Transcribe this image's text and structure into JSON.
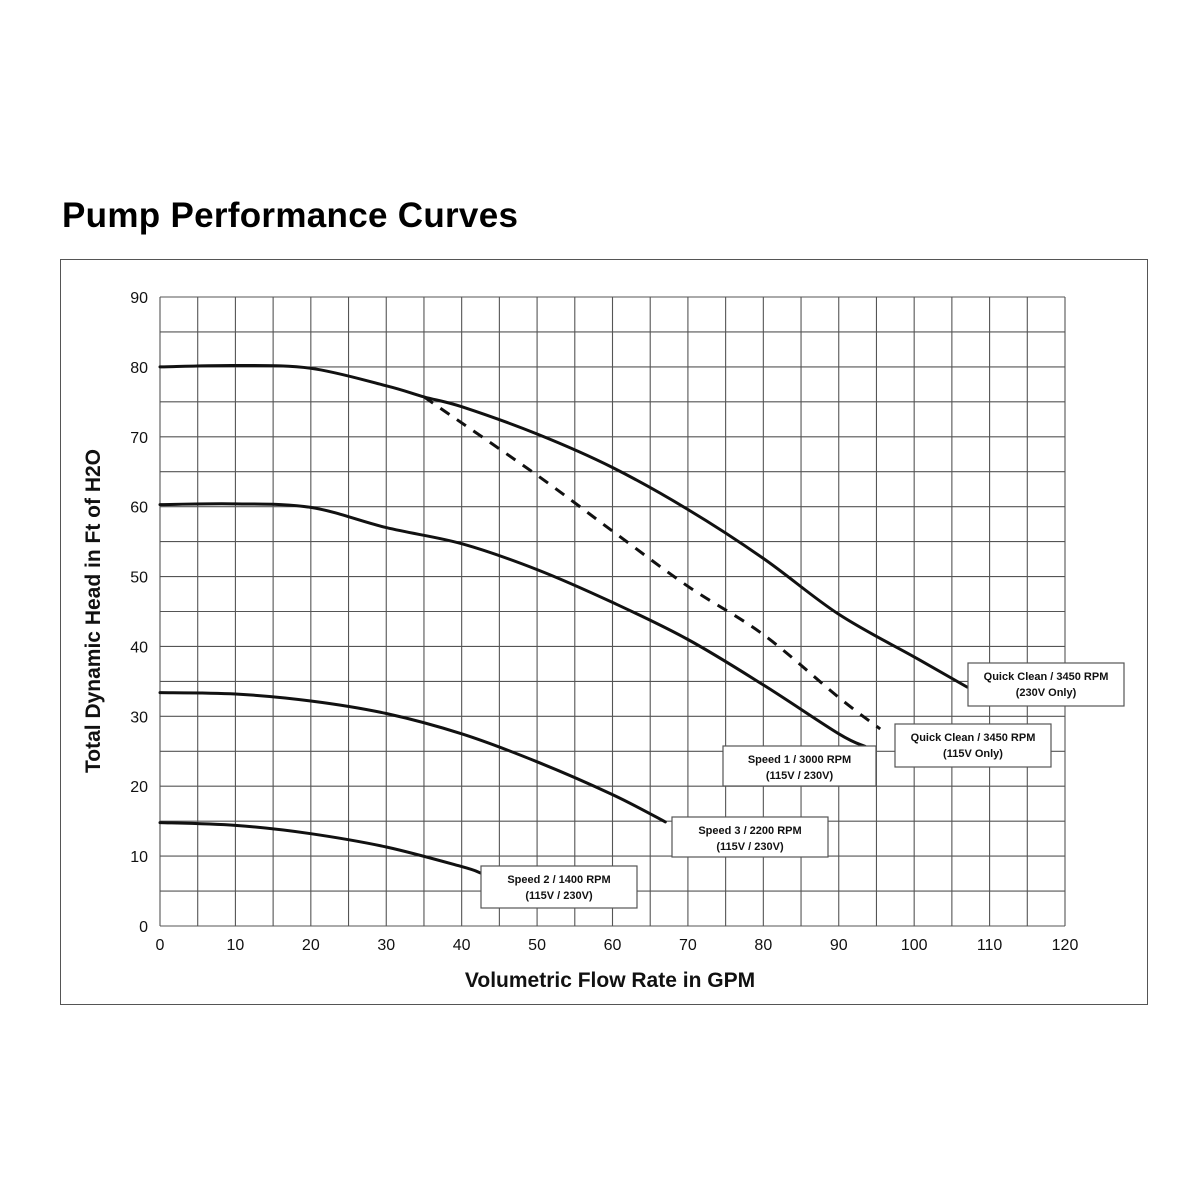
{
  "title": "Pump Performance Curves",
  "chart_data": {
    "type": "line",
    "title": "Pump Performance Curves",
    "xlabel": "Volumetric Flow Rate in GPM",
    "ylabel": "Total Dynamic Head in Ft of H2O",
    "xlim": [
      0,
      120
    ],
    "ylim": [
      0,
      90
    ],
    "x_ticks": [
      0,
      10,
      20,
      30,
      40,
      50,
      60,
      70,
      80,
      90,
      100,
      110,
      120
    ],
    "y_ticks": [
      0,
      10,
      20,
      30,
      40,
      50,
      60,
      70,
      80,
      90
    ],
    "grid": true,
    "series": [
      {
        "name": "Quick Clean / 3450 RPM (230V Only)",
        "style": "solid",
        "x": [
          0,
          10,
          20,
          30,
          35,
          40,
          50,
          60,
          70,
          80,
          90,
          100,
          107
        ],
        "y": [
          80,
          80.2,
          79.8,
          77.3,
          75.7,
          74.3,
          70.4,
          65.6,
          59.6,
          52.6,
          44.6,
          38.5,
          34.2
        ]
      },
      {
        "name": "Speed 1 / 3000 RPM (115V / 230V)",
        "style": "solid",
        "x": [
          0,
          10,
          20,
          30,
          40,
          50,
          60,
          70,
          80,
          90,
          93.5
        ],
        "y": [
          60.3,
          60.4,
          59.9,
          57,
          54.7,
          51,
          46.3,
          41,
          34.5,
          27.5,
          25.7
        ]
      },
      {
        "name": "Quick Clean / 3450 RPM (115V Only)",
        "style": "dashed",
        "x": [
          35,
          50,
          60,
          70,
          80,
          90,
          95.5
        ],
        "y": [
          75.7,
          64.5,
          56.5,
          48.6,
          41.7,
          32.7,
          28.2
        ]
      },
      {
        "name": "Speed 3 / 2200 RPM (115V / 230V)",
        "style": "solid",
        "x": [
          0,
          10,
          20,
          30,
          40,
          50,
          60,
          67
        ],
        "y": [
          33.4,
          33.2,
          32.2,
          30.4,
          27.5,
          23.5,
          18.8,
          14.9
        ]
      },
      {
        "name": "Speed 2 / 1400 RPM (115V / 230V)",
        "style": "solid",
        "x": [
          0,
          10,
          20,
          30,
          40,
          42.5
        ],
        "y": [
          14.8,
          14.4,
          13.2,
          11.3,
          8.5,
          7.6
        ]
      }
    ],
    "annotations": [
      {
        "line1": "Quick Clean / 3450 RPM",
        "line2": "(230V Only)"
      },
      {
        "line1": "Quick Clean / 3450 RPM",
        "line2": "(115V Only)"
      },
      {
        "line1": "Speed 1 / 3000 RPM",
        "line2": "(115V / 230V)"
      },
      {
        "line1": "Speed 3 / 2200 RPM",
        "line2": "(115V / 230V)"
      },
      {
        "line1": "Speed 2 / 1400 RPM",
        "line2": "(115V / 230V)"
      }
    ]
  }
}
